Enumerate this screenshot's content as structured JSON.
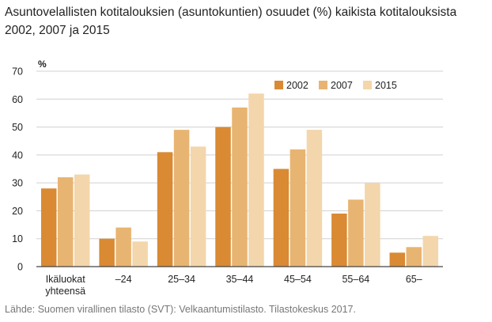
{
  "title_lines": [
    "Asuntovelallisten kotitalouksien (asuntokuntien) osuudet (%) kaikista kotitalouksista",
    "2002, 2007 ja 2015"
  ],
  "source": "Lähde: Suomen virallinen tilasto (SVT): Velkaantumistilasto. Tilastokeskus 2017.",
  "colors": {
    "2002": "#d98a33",
    "2007": "#e8b471",
    "2015": "#f3d6ab",
    "grid": "#d0d0d0",
    "axis": "#444444"
  },
  "chart_data": {
    "type": "bar",
    "ylabel": "%",
    "ylim": [
      0,
      70
    ],
    "yticks": [
      0,
      10,
      20,
      30,
      40,
      50,
      60,
      70
    ],
    "grid": true,
    "legend_position": "top-right",
    "categories": [
      [
        "Ikäluokat",
        "yhteensä"
      ],
      [
        "–24"
      ],
      [
        "25–34"
      ],
      [
        "35–44"
      ],
      [
        "45–54"
      ],
      [
        "55–64"
      ],
      [
        "65–"
      ]
    ],
    "series": [
      {
        "name": "2002",
        "values": [
          28,
          10,
          41,
          50,
          35,
          19,
          5
        ]
      },
      {
        "name": "2007",
        "values": [
          32,
          14,
          49,
          57,
          42,
          24,
          7
        ]
      },
      {
        "name": "2015",
        "values": [
          33,
          9,
          43,
          62,
          49,
          30,
          11
        ]
      }
    ]
  }
}
